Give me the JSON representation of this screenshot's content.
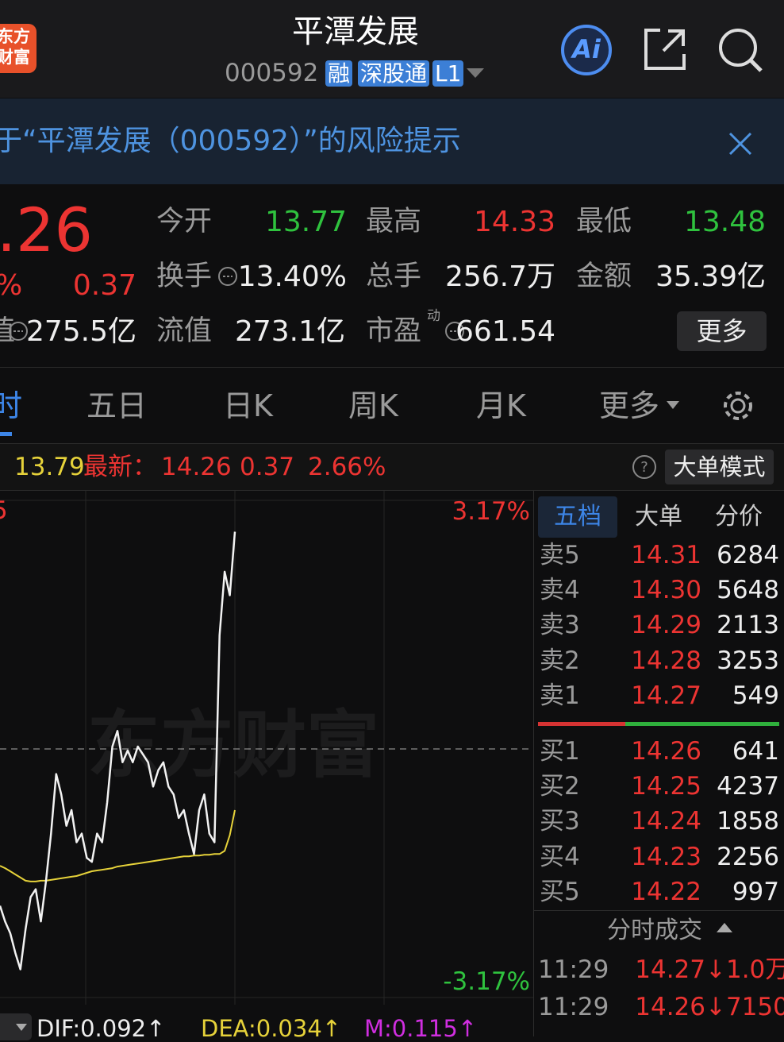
{
  "header": {
    "logo": [
      "东方",
      "财富"
    ],
    "title": "平潭发展",
    "code": "000592",
    "tags": [
      "融",
      "深股通",
      "L1"
    ],
    "ai": "Ai"
  },
  "banner": {
    "text": "于“平潭发展（000592）”的风险提示"
  },
  "quote": {
    "price": ".26",
    "change_pct": "%",
    "change": "0.37",
    "stats": [
      {
        "label": "今开",
        "value": "13.77"
      },
      {
        "label": "最高",
        "value": "14.33"
      },
      {
        "label": "最低",
        "value": "13.48"
      },
      {
        "label": "换手",
        "value": "13.40%"
      },
      {
        "label": "总手",
        "value": "256.7万"
      },
      {
        "label": "金额",
        "value": "35.39亿"
      },
      {
        "label": "值",
        "value": "275.5亿"
      },
      {
        "label": "流值",
        "value": "273.1亿"
      },
      {
        "label": "市盈",
        "sup": "动",
        "value": "661.54"
      }
    ],
    "more": "更多"
  },
  "tabs": [
    "时",
    "五日",
    "日K",
    "周K",
    "月K",
    "更多"
  ],
  "info": {
    "avg": "13.79",
    "latest_label": "最新：",
    "latest": "14.26",
    "change": "0.37",
    "change_pct": "2.66%",
    "mode": "大单模式"
  },
  "chart": {
    "type": "line",
    "left_label": "5",
    "watermark": "东方财富",
    "ylim": [
      -3.17,
      3.17
    ],
    "yticks": [
      {
        "value": 3.17,
        "label": "3.17%"
      },
      {
        "value": -3.17,
        "label": "-3.17%"
      }
    ],
    "series": [
      {
        "color": "#f2f2f2",
        "values": [
          -2.0,
          -2.2,
          -2.35,
          -2.6,
          -2.81,
          -2.3,
          -1.89,
          -1.79,
          -2.2,
          -1.69,
          -1.08,
          -0.32,
          -0.58,
          -0.98,
          -0.78,
          -1.19,
          -1.08,
          -1.39,
          -1.44,
          -1.08,
          -1.19,
          -0.68,
          0.03,
          0.23,
          -0.17,
          -0.02,
          -0.17,
          0.03,
          -0.07,
          -0.17,
          -0.48,
          -0.27,
          -0.17,
          -0.48,
          -0.58,
          -0.88,
          -0.78,
          -1.08,
          -1.34,
          -0.78,
          -0.58,
          -1.08,
          -1.19,
          1.45,
          2.26,
          1.96,
          2.77
        ]
      },
      {
        "color": "#e6d23a",
        "values": [
          -1.49,
          -1.52,
          -1.56,
          -1.6,
          -1.64,
          -1.68,
          -1.69,
          -1.69,
          -1.68,
          -1.68,
          -1.67,
          -1.66,
          -1.65,
          -1.64,
          -1.63,
          -1.62,
          -1.6,
          -1.58,
          -1.56,
          -1.55,
          -1.54,
          -1.53,
          -1.52,
          -1.5,
          -1.49,
          -1.48,
          -1.47,
          -1.46,
          -1.45,
          -1.44,
          -1.43,
          -1.42,
          -1.41,
          -1.4,
          -1.39,
          -1.38,
          -1.37,
          -1.37,
          -1.36,
          -1.36,
          -1.35,
          -1.35,
          -1.34,
          -1.34,
          -1.3,
          -1.1,
          -0.78
        ]
      }
    ]
  },
  "order_book": {
    "tabs": [
      "五档",
      "大单",
      "分价"
    ],
    "asks": [
      {
        "label": "卖5",
        "price": "14.31",
        "volume": "6284"
      },
      {
        "label": "卖4",
        "price": "14.30",
        "volume": "5648"
      },
      {
        "label": "卖3",
        "price": "14.29",
        "volume": "2113"
      },
      {
        "label": "卖2",
        "price": "14.28",
        "volume": "3253"
      },
      {
        "label": "卖1",
        "price": "14.27",
        "volume": "549"
      }
    ],
    "bids": [
      {
        "label": "买1",
        "price": "14.26",
        "volume": "641"
      },
      {
        "label": "买2",
        "price": "14.25",
        "volume": "4237"
      },
      {
        "label": "买3",
        "price": "14.24",
        "volume": "1858"
      },
      {
        "label": "买4",
        "price": "14.23",
        "volume": "2256"
      },
      {
        "label": "买5",
        "price": "14.22",
        "volume": "997"
      }
    ]
  },
  "trades": {
    "title": "分时成交",
    "rows": [
      {
        "time": "11:29",
        "price": "14.27",
        "volume": "↓1.0万"
      },
      {
        "time": "11:29",
        "price": "14.26",
        "volume": "↓7150"
      }
    ]
  },
  "indicators": {
    "dif": "DIF:0.092↑",
    "dea": "DEA:0.034↑",
    "m": "M:0.115↑"
  }
}
